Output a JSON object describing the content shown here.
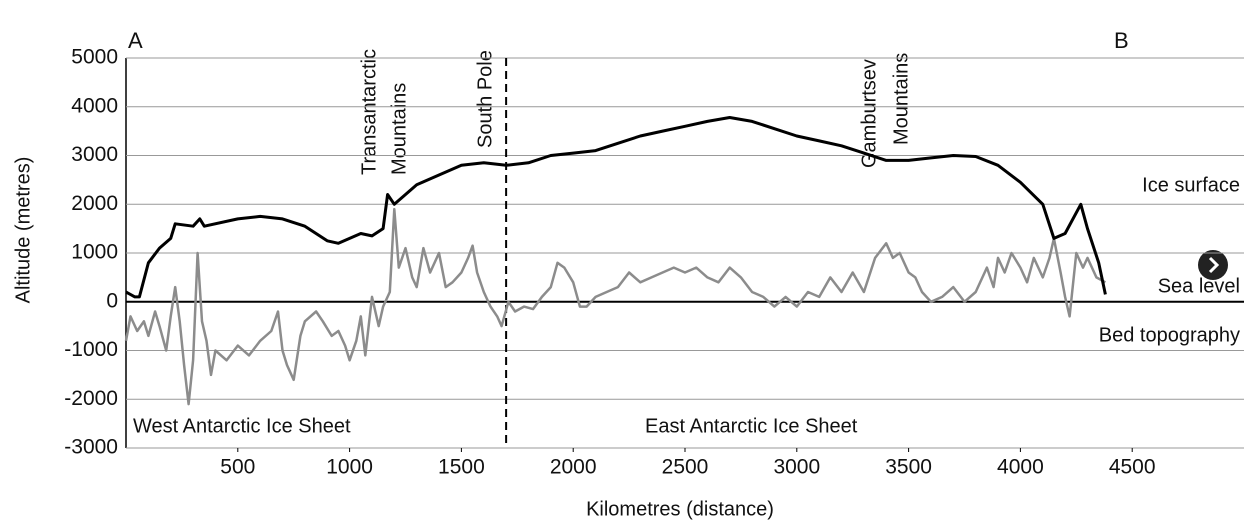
{
  "chart_data": {
    "type": "line",
    "xlabel": "Kilometres (distance)",
    "ylabel": "Altitude (metres)",
    "xlim": [
      0,
      5000
    ],
    "ylim": [
      -3000,
      5000
    ],
    "xticks": [
      500,
      1000,
      1500,
      2000,
      2500,
      3000,
      3500,
      4000,
      4500
    ],
    "yticks": [
      -3000,
      -2000,
      -1000,
      0,
      1000,
      2000,
      3000,
      4000,
      5000
    ],
    "grid": true,
    "divider_x": 1700,
    "annotations": [
      "A",
      "B",
      "Transantarctic",
      "Mountains",
      "South Pole",
      "Gamburtsev",
      "Mountains",
      "Sea level",
      "West Antarctic Ice Sheet",
      "East Antarctic Ice Sheet"
    ],
    "series": [
      {
        "name": "Ice surface",
        "color": "#000000",
        "x": [
          0,
          40,
          60,
          100,
          150,
          200,
          220,
          300,
          330,
          350,
          500,
          600,
          700,
          800,
          900,
          950,
          1000,
          1050,
          1100,
          1150,
          1170,
          1200,
          1250,
          1300,
          1400,
          1500,
          1600,
          1700,
          1800,
          1900,
          2000,
          2100,
          2200,
          2300,
          2400,
          2500,
          2600,
          2700,
          2800,
          2900,
          3000,
          3100,
          3200,
          3300,
          3400,
          3500,
          3600,
          3700,
          3800,
          3900,
          4000,
          4100,
          4150,
          4200,
          4270,
          4300,
          4350,
          4380
        ],
        "values": [
          200,
          100,
          100,
          800,
          1100,
          1300,
          1600,
          1550,
          1700,
          1550,
          1700,
          1750,
          1700,
          1550,
          1250,
          1200,
          1300,
          1400,
          1350,
          1500,
          2200,
          2000,
          2200,
          2400,
          2600,
          2800,
          2850,
          2800,
          2850,
          3000,
          3050,
          3100,
          3250,
          3400,
          3500,
          3600,
          3700,
          3780,
          3700,
          3550,
          3400,
          3300,
          3200,
          3050,
          2900,
          2900,
          2950,
          3000,
          2980,
          2800,
          2450,
          2000,
          1300,
          1400,
          2000,
          1500,
          800,
          150
        ]
      },
      {
        "name": "Bed topography",
        "color": "#8c8c8c",
        "x": [
          0,
          20,
          50,
          80,
          100,
          130,
          150,
          180,
          200,
          220,
          240,
          260,
          280,
          300,
          320,
          340,
          360,
          380,
          400,
          450,
          500,
          550,
          600,
          650,
          680,
          700,
          720,
          750,
          780,
          800,
          850,
          880,
          920,
          950,
          980,
          1000,
          1030,
          1050,
          1070,
          1100,
          1130,
          1150,
          1180,
          1200,
          1220,
          1250,
          1280,
          1300,
          1330,
          1360,
          1400,
          1430,
          1460,
          1500,
          1530,
          1550,
          1570,
          1600,
          1630,
          1660,
          1680,
          1710,
          1740,
          1780,
          1820,
          1860,
          1900,
          1930,
          1960,
          2000,
          2030,
          2060,
          2100,
          2150,
          2200,
          2250,
          2300,
          2350,
          2400,
          2450,
          2500,
          2550,
          2600,
          2650,
          2700,
          2750,
          2800,
          2850,
          2900,
          2950,
          3000,
          3050,
          3100,
          3150,
          3200,
          3250,
          3300,
          3350,
          3400,
          3430,
          3460,
          3500,
          3530,
          3560,
          3600,
          3650,
          3700,
          3750,
          3800,
          3850,
          3880,
          3900,
          3930,
          3960,
          4000,
          4030,
          4060,
          4100,
          4130,
          4150,
          4180,
          4200,
          4220,
          4250,
          4280,
          4300,
          4340,
          4380
        ],
        "values": [
          -800,
          -300,
          -600,
          -400,
          -700,
          -200,
          -500,
          -1000,
          -300,
          300,
          -400,
          -1300,
          -2100,
          -1200,
          1000,
          -400,
          -800,
          -1500,
          -1000,
          -1200,
          -900,
          -1100,
          -800,
          -600,
          -200,
          -1000,
          -1300,
          -1600,
          -700,
          -400,
          -200,
          -400,
          -700,
          -600,
          -900,
          -1200,
          -800,
          -300,
          -1100,
          100,
          -500,
          -100,
          200,
          1900,
          700,
          1100,
          500,
          300,
          1100,
          600,
          1000,
          300,
          400,
          600,
          900,
          1150,
          600,
          200,
          -100,
          -300,
          -500,
          0,
          -200,
          -100,
          -150,
          100,
          300,
          800,
          700,
          400,
          -100,
          -100,
          100,
          200,
          300,
          600,
          400,
          500,
          600,
          700,
          600,
          700,
          500,
          400,
          700,
          500,
          200,
          100,
          -100,
          100,
          -100,
          200,
          100,
          500,
          200,
          600,
          200,
          900,
          1200,
          900,
          1000,
          600,
          500,
          200,
          0,
          100,
          300,
          0,
          200,
          700,
          300,
          900,
          600,
          1000,
          700,
          400,
          900,
          500,
          900,
          1300,
          600,
          100,
          -300,
          1000,
          700,
          900,
          500,
          400
        ]
      }
    ]
  }
}
